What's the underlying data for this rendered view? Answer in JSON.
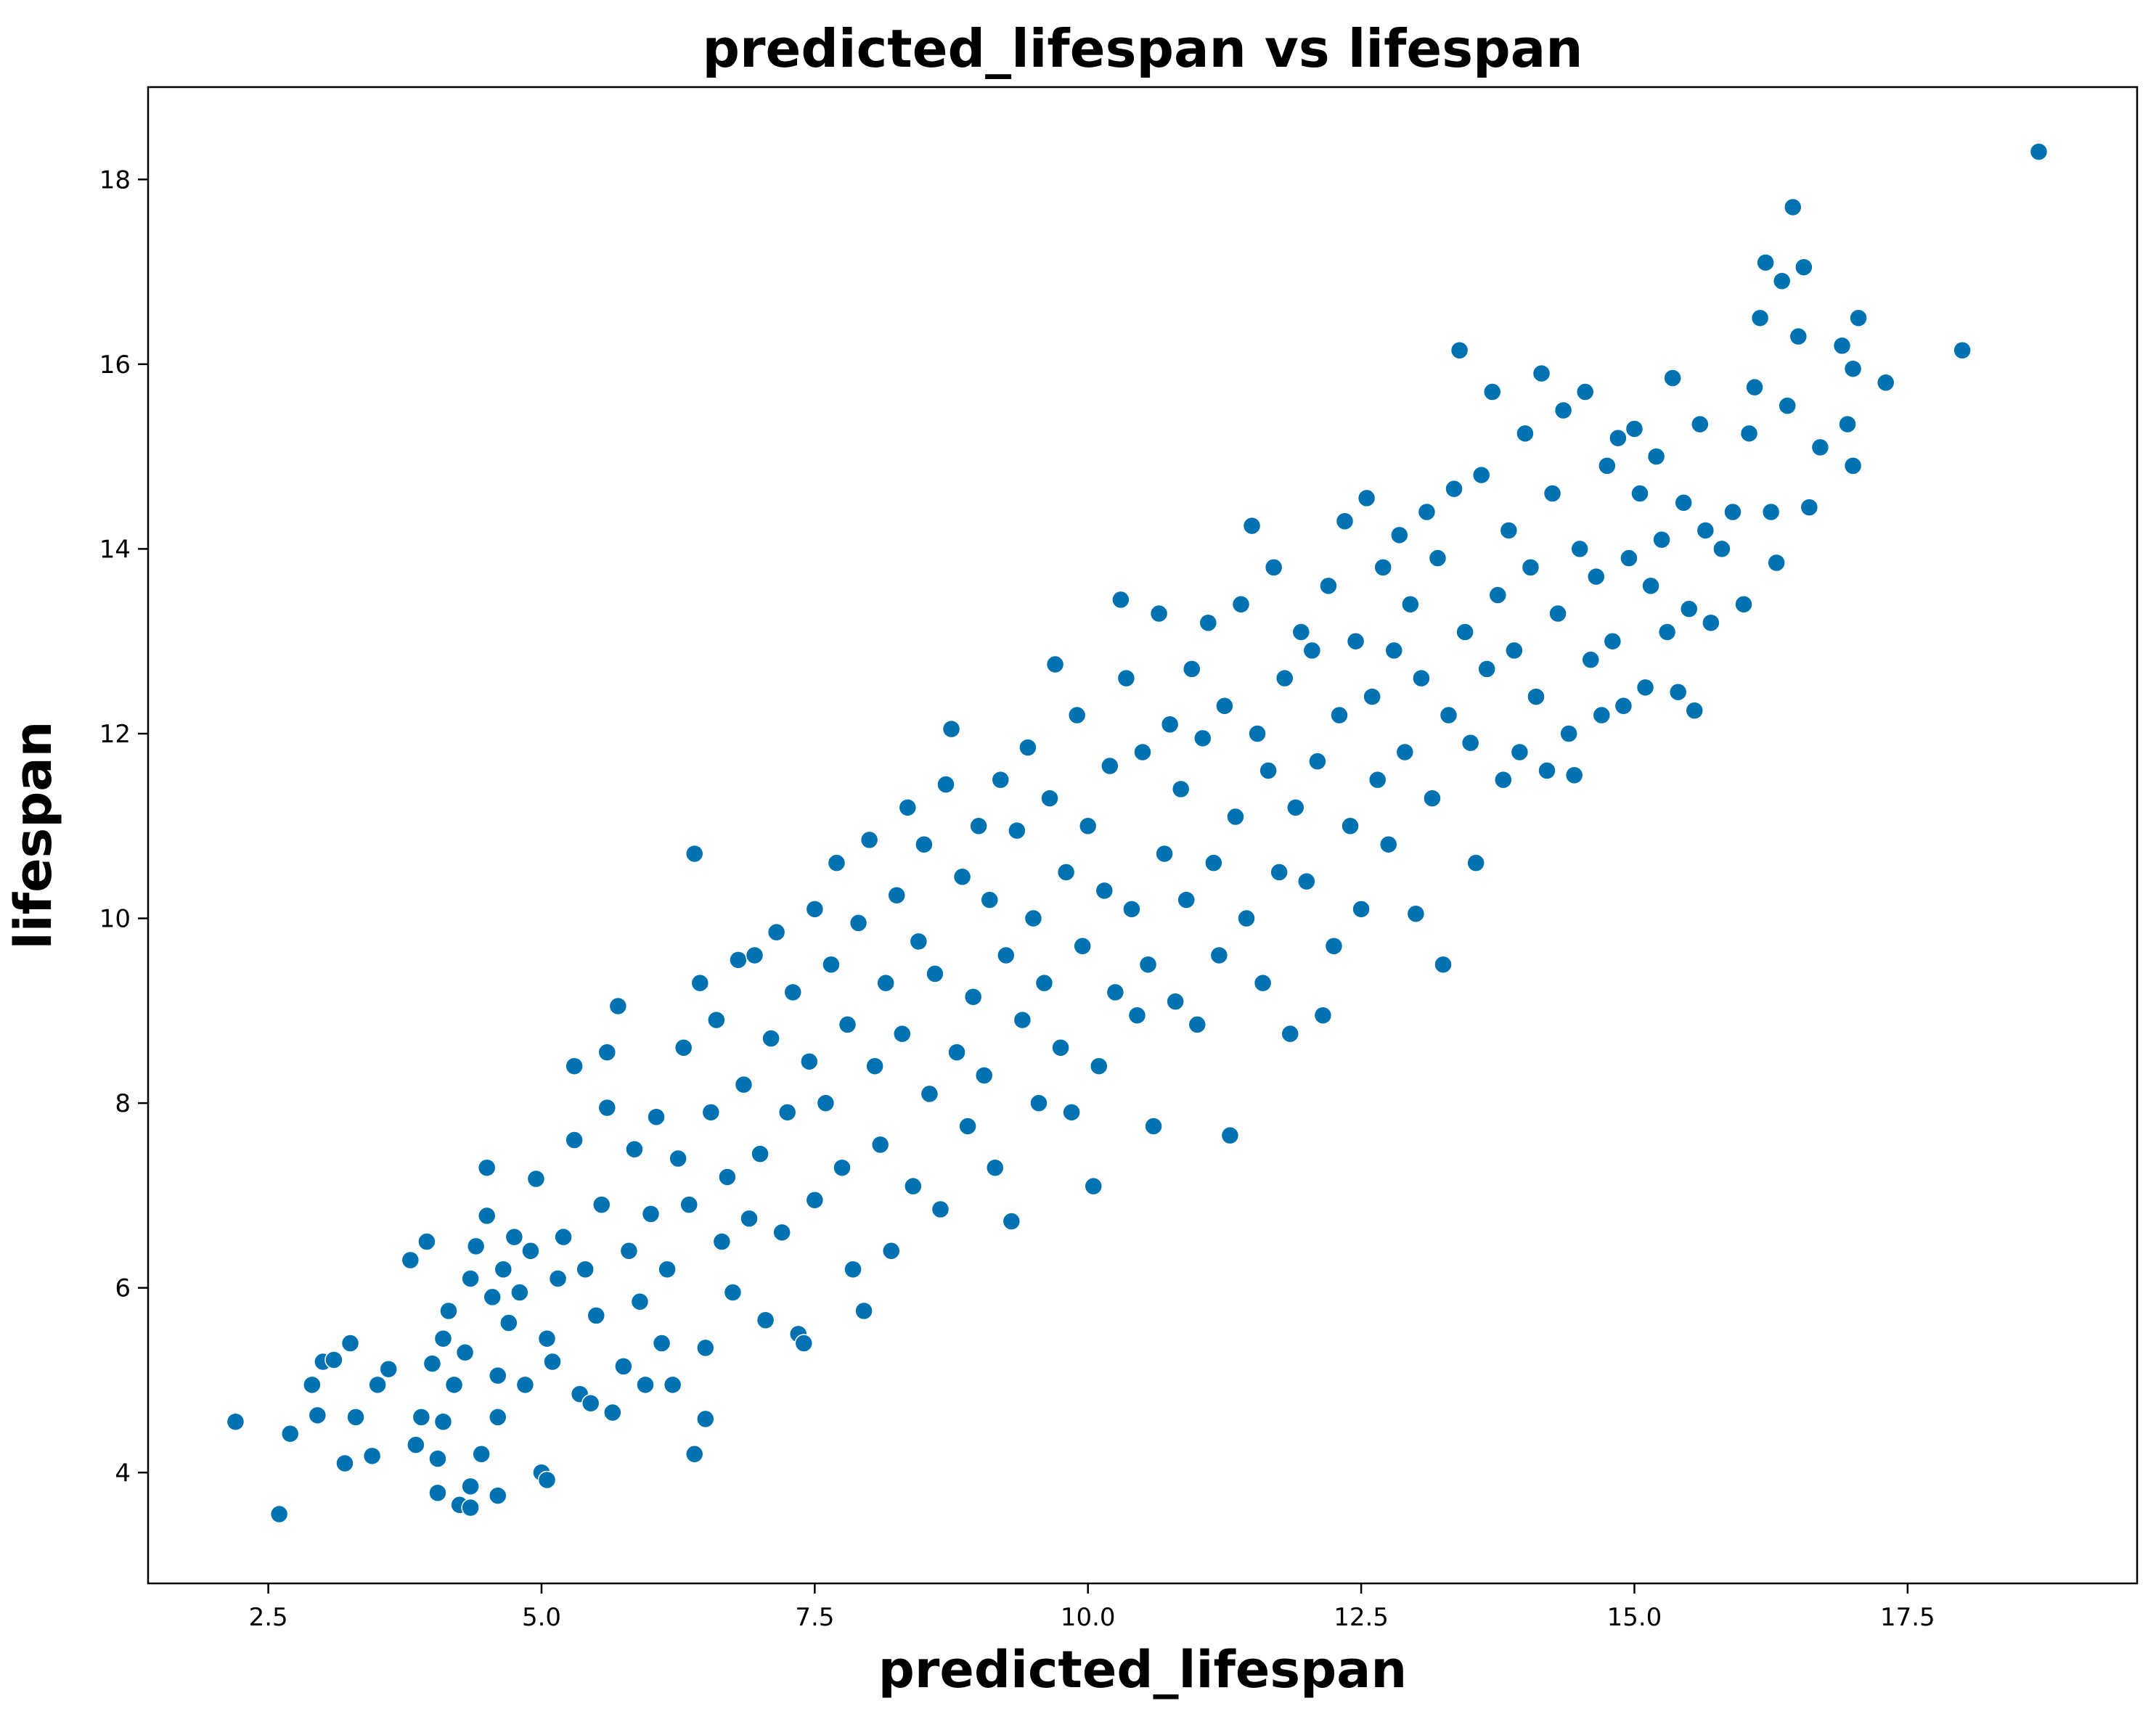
{
  "chart_data": {
    "type": "scatter",
    "title": "predicted_lifespan vs lifespan",
    "xlabel": "predicted_lifespan",
    "ylabel": "lifespan",
    "xlim": [
      1.4,
      19.6
    ],
    "ylim": [
      2.8,
      19.0
    ],
    "xticks": [
      2.5,
      5.0,
      7.5,
      10.0,
      12.5,
      15.0,
      17.5
    ],
    "xtick_labels": [
      "2.5",
      "5.0",
      "7.5",
      "10.0",
      "12.5",
      "15.0",
      "17.5"
    ],
    "yticks": [
      4,
      6,
      8,
      10,
      12,
      14,
      16,
      18
    ],
    "ytick_labels": [
      "4",
      "6",
      "8",
      "10",
      "12",
      "14",
      "16",
      "18"
    ],
    "grid": false,
    "legend": "none",
    "marker_color": "#0072b2",
    "marker_edge_color": "#ffffff",
    "series": [
      {
        "points": [
          [
            2.2,
            4.55
          ],
          [
            2.6,
            3.55
          ],
          [
            2.7,
            4.42
          ],
          [
            2.95,
            4.62
          ],
          [
            2.9,
            4.95
          ],
          [
            3.0,
            5.2
          ],
          [
            3.1,
            5.22
          ],
          [
            3.2,
            4.1
          ],
          [
            3.25,
            5.4
          ],
          [
            3.3,
            4.6
          ],
          [
            3.45,
            4.18
          ],
          [
            3.5,
            4.95
          ],
          [
            3.6,
            5.12
          ],
          [
            3.8,
            6.3
          ],
          [
            3.85,
            4.3
          ],
          [
            3.9,
            4.6
          ],
          [
            3.95,
            6.5
          ],
          [
            4.0,
            5.18
          ],
          [
            4.05,
            3.78
          ],
          [
            4.05,
            4.15
          ],
          [
            4.1,
            5.45
          ],
          [
            4.1,
            4.55
          ],
          [
            4.15,
            5.75
          ],
          [
            4.2,
            4.95
          ],
          [
            4.25,
            3.65
          ],
          [
            4.3,
            5.3
          ],
          [
            4.35,
            3.62
          ],
          [
            4.35,
            3.85
          ],
          [
            4.35,
            6.1
          ],
          [
            4.4,
            6.45
          ],
          [
            4.45,
            4.2
          ],
          [
            4.5,
            6.78
          ],
          [
            4.5,
            7.3
          ],
          [
            4.55,
            5.9
          ],
          [
            4.6,
            5.05
          ],
          [
            4.6,
            4.6
          ],
          [
            4.6,
            3.75
          ],
          [
            4.65,
            6.2
          ],
          [
            4.7,
            5.62
          ],
          [
            4.75,
            6.55
          ],
          [
            4.8,
            5.95
          ],
          [
            4.85,
            4.95
          ],
          [
            4.9,
            6.4
          ],
          [
            4.95,
            7.18
          ],
          [
            5.0,
            4.0
          ],
          [
            5.05,
            3.92
          ],
          [
            5.05,
            5.45
          ],
          [
            5.1,
            5.2
          ],
          [
            5.15,
            6.1
          ],
          [
            5.2,
            6.55
          ],
          [
            5.3,
            7.6
          ],
          [
            5.3,
            8.4
          ],
          [
            5.35,
            4.85
          ],
          [
            5.4,
            6.2
          ],
          [
            5.45,
            4.75
          ],
          [
            5.5,
            5.7
          ],
          [
            5.55,
            6.9
          ],
          [
            5.6,
            7.95
          ],
          [
            5.6,
            8.55
          ],
          [
            5.65,
            4.65
          ],
          [
            5.7,
            9.05
          ],
          [
            5.75,
            5.15
          ],
          [
            5.8,
            6.4
          ],
          [
            5.85,
            7.5
          ],
          [
            5.9,
            5.85
          ],
          [
            5.95,
            4.95
          ],
          [
            6.0,
            6.8
          ],
          [
            6.05,
            7.85
          ],
          [
            6.1,
            5.4
          ],
          [
            6.15,
            6.2
          ],
          [
            6.2,
            4.95
          ],
          [
            6.25,
            7.4
          ],
          [
            6.3,
            8.6
          ],
          [
            6.35,
            6.9
          ],
          [
            6.4,
            4.2
          ],
          [
            6.4,
            10.7
          ],
          [
            6.45,
            9.3
          ],
          [
            6.5,
            5.35
          ],
          [
            6.5,
            4.58
          ],
          [
            6.55,
            7.9
          ],
          [
            6.6,
            8.9
          ],
          [
            6.65,
            6.5
          ],
          [
            6.7,
            7.2
          ],
          [
            6.75,
            5.95
          ],
          [
            6.8,
            9.55
          ],
          [
            6.85,
            8.2
          ],
          [
            6.9,
            6.75
          ],
          [
            6.95,
            9.6
          ],
          [
            7.0,
            7.45
          ],
          [
            7.05,
            5.65
          ],
          [
            7.1,
            8.7
          ],
          [
            7.15,
            9.85
          ],
          [
            7.2,
            6.6
          ],
          [
            7.25,
            7.9
          ],
          [
            7.3,
            9.2
          ],
          [
            7.35,
            5.5
          ],
          [
            7.4,
            5.4
          ],
          [
            7.45,
            8.45
          ],
          [
            7.5,
            10.1
          ],
          [
            7.5,
            6.95
          ],
          [
            7.6,
            8.0
          ],
          [
            7.65,
            9.5
          ],
          [
            7.7,
            10.6
          ],
          [
            7.75,
            7.3
          ],
          [
            7.8,
            8.85
          ],
          [
            7.85,
            6.2
          ],
          [
            7.9,
            9.95
          ],
          [
            7.95,
            5.75
          ],
          [
            8.0,
            10.85
          ],
          [
            8.05,
            8.4
          ],
          [
            8.1,
            7.55
          ],
          [
            8.15,
            9.3
          ],
          [
            8.2,
            6.4
          ],
          [
            8.25,
            10.25
          ],
          [
            8.3,
            8.75
          ],
          [
            8.35,
            11.2
          ],
          [
            8.4,
            7.1
          ],
          [
            8.45,
            9.75
          ],
          [
            8.5,
            10.8
          ],
          [
            8.55,
            8.1
          ],
          [
            8.6,
            9.4
          ],
          [
            8.65,
            6.85
          ],
          [
            8.7,
            11.45
          ],
          [
            8.75,
            12.05
          ],
          [
            8.8,
            8.55
          ],
          [
            8.85,
            10.45
          ],
          [
            8.9,
            7.75
          ],
          [
            8.95,
            9.15
          ],
          [
            9.0,
            11.0
          ],
          [
            9.05,
            8.3
          ],
          [
            9.1,
            10.2
          ],
          [
            9.15,
            7.3
          ],
          [
            9.2,
            11.5
          ],
          [
            9.25,
            9.6
          ],
          [
            9.3,
            6.72
          ],
          [
            9.35,
            10.95
          ],
          [
            9.4,
            8.9
          ],
          [
            9.45,
            11.85
          ],
          [
            9.5,
            10.0
          ],
          [
            9.55,
            8.0
          ],
          [
            9.6,
            9.3
          ],
          [
            9.65,
            11.3
          ],
          [
            9.7,
            12.75
          ],
          [
            9.75,
            8.6
          ],
          [
            9.8,
            10.5
          ],
          [
            9.85,
            7.9
          ],
          [
            9.9,
            12.2
          ],
          [
            9.95,
            9.7
          ],
          [
            10.0,
            11.0
          ],
          [
            10.05,
            7.1
          ],
          [
            10.1,
            8.4
          ],
          [
            10.15,
            10.3
          ],
          [
            10.2,
            11.65
          ],
          [
            10.25,
            9.2
          ],
          [
            10.3,
            13.45
          ],
          [
            10.35,
            12.6
          ],
          [
            10.4,
            10.1
          ],
          [
            10.45,
            8.95
          ],
          [
            10.5,
            11.8
          ],
          [
            10.55,
            9.5
          ],
          [
            10.6,
            7.75
          ],
          [
            10.65,
            13.3
          ],
          [
            10.7,
            10.7
          ],
          [
            10.75,
            12.1
          ],
          [
            10.8,
            9.1
          ],
          [
            10.85,
            11.4
          ],
          [
            10.9,
            10.2
          ],
          [
            10.95,
            12.7
          ],
          [
            11.0,
            8.85
          ],
          [
            11.05,
            11.95
          ],
          [
            11.1,
            13.2
          ],
          [
            11.15,
            10.6
          ],
          [
            11.2,
            9.6
          ],
          [
            11.25,
            12.3
          ],
          [
            11.3,
            7.65
          ],
          [
            11.35,
            11.1
          ],
          [
            11.4,
            13.4
          ],
          [
            11.45,
            10.0
          ],
          [
            11.5,
            14.25
          ],
          [
            11.55,
            12.0
          ],
          [
            11.6,
            9.3
          ],
          [
            11.65,
            11.6
          ],
          [
            11.7,
            13.8
          ],
          [
            11.75,
            10.5
          ],
          [
            11.8,
            12.6
          ],
          [
            11.85,
            8.75
          ],
          [
            11.9,
            11.2
          ],
          [
            11.95,
            13.1
          ],
          [
            12.0,
            10.4
          ],
          [
            12.05,
            12.9
          ],
          [
            12.1,
            11.7
          ],
          [
            12.15,
            8.95
          ],
          [
            12.2,
            13.6
          ],
          [
            12.25,
            9.7
          ],
          [
            12.3,
            12.2
          ],
          [
            12.35,
            14.3
          ],
          [
            12.4,
            11.0
          ],
          [
            12.45,
            13.0
          ],
          [
            12.5,
            10.1
          ],
          [
            12.55,
            14.55
          ],
          [
            12.6,
            12.4
          ],
          [
            12.65,
            11.5
          ],
          [
            12.7,
            13.8
          ],
          [
            12.75,
            10.8
          ],
          [
            12.8,
            12.9
          ],
          [
            12.85,
            14.15
          ],
          [
            12.9,
            11.8
          ],
          [
            12.95,
            13.4
          ],
          [
            13.0,
            10.05
          ],
          [
            13.05,
            12.6
          ],
          [
            13.1,
            14.4
          ],
          [
            13.15,
            11.3
          ],
          [
            13.2,
            13.9
          ],
          [
            13.25,
            9.5
          ],
          [
            13.3,
            12.2
          ],
          [
            13.35,
            14.65
          ],
          [
            13.4,
            16.15
          ],
          [
            13.45,
            13.1
          ],
          [
            13.5,
            11.9
          ],
          [
            13.55,
            10.6
          ],
          [
            13.6,
            14.8
          ],
          [
            13.65,
            12.7
          ],
          [
            13.7,
            15.7
          ],
          [
            13.75,
            13.5
          ],
          [
            13.8,
            11.5
          ],
          [
            13.85,
            14.2
          ],
          [
            13.9,
            12.9
          ],
          [
            13.95,
            11.8
          ],
          [
            14.0,
            15.25
          ],
          [
            14.05,
            13.8
          ],
          [
            14.1,
            12.4
          ],
          [
            14.15,
            15.9
          ],
          [
            14.2,
            11.6
          ],
          [
            14.25,
            14.6
          ],
          [
            14.3,
            13.3
          ],
          [
            14.35,
            15.5
          ],
          [
            14.4,
            12.0
          ],
          [
            14.45,
            11.55
          ],
          [
            14.5,
            14.0
          ],
          [
            14.55,
            15.7
          ],
          [
            14.6,
            12.8
          ],
          [
            14.65,
            13.7
          ],
          [
            14.7,
            12.2
          ],
          [
            14.75,
            14.9
          ],
          [
            14.8,
            13.0
          ],
          [
            14.85,
            15.2
          ],
          [
            14.9,
            12.3
          ],
          [
            14.95,
            13.9
          ],
          [
            15.0,
            15.3
          ],
          [
            15.05,
            14.6
          ],
          [
            15.1,
            12.5
          ],
          [
            15.15,
            13.6
          ],
          [
            15.2,
            15.0
          ],
          [
            15.25,
            14.1
          ],
          [
            15.3,
            13.1
          ],
          [
            15.35,
            15.85
          ],
          [
            15.4,
            12.45
          ],
          [
            15.45,
            14.5
          ],
          [
            15.5,
            13.35
          ],
          [
            15.55,
            12.25
          ],
          [
            15.6,
            15.35
          ],
          [
            15.65,
            14.2
          ],
          [
            15.7,
            13.2
          ],
          [
            15.8,
            14.0
          ],
          [
            15.9,
            14.4
          ],
          [
            16.0,
            13.4
          ],
          [
            16.05,
            15.25
          ],
          [
            16.1,
            15.75
          ],
          [
            16.15,
            16.5
          ],
          [
            16.2,
            17.1
          ],
          [
            16.25,
            14.4
          ],
          [
            16.3,
            13.85
          ],
          [
            16.35,
            16.9
          ],
          [
            16.4,
            15.55
          ],
          [
            16.45,
            17.7
          ],
          [
            16.5,
            16.3
          ],
          [
            16.55,
            17.05
          ],
          [
            16.6,
            14.45
          ],
          [
            16.7,
            15.1
          ],
          [
            16.9,
            16.2
          ],
          [
            16.95,
            15.35
          ],
          [
            17.0,
            15.95
          ],
          [
            17.0,
            14.9
          ],
          [
            17.05,
            16.5
          ],
          [
            17.3,
            15.8
          ],
          [
            18.0,
            16.15
          ],
          [
            18.7,
            18.3
          ]
        ]
      }
    ]
  }
}
